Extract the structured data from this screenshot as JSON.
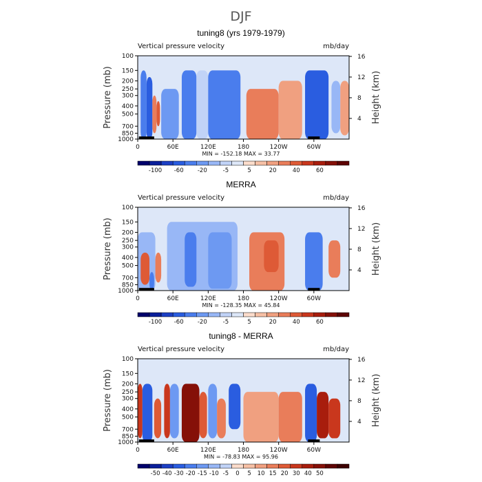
{
  "figure": {
    "season_title": "DJF"
  },
  "levels_common": [
    -120,
    -100,
    -80,
    -60,
    -40,
    -20,
    -10,
    -5,
    -2.5,
    2.5,
    5,
    10,
    20,
    30,
    40,
    50,
    60,
    70
  ],
  "levels_diff": [
    -60,
    -50,
    -40,
    -30,
    -20,
    -15,
    -10,
    -5,
    0,
    5,
    10,
    15,
    20,
    30,
    40,
    50,
    60
  ],
  "colors_common": [
    "#00006b",
    "#0a1f9a",
    "#1c3fc4",
    "#2a5de0",
    "#4a7ded",
    "#6d99f2",
    "#98b7f6",
    "#c1d3f7",
    "#dde7f8",
    "#fbdccb",
    "#f6c0a5",
    "#f0a080",
    "#e97d5a",
    "#de5a36",
    "#c9371d",
    "#a81d0d",
    "#851008",
    "#5e0404"
  ],
  "colors_diff": [
    "#00006b",
    "#0a1f9a",
    "#1c3fc4",
    "#2a5de0",
    "#4a7ded",
    "#6d99f2",
    "#98b7f6",
    "#c1d3f7",
    "#fbdccb",
    "#f6c0a5",
    "#f0a080",
    "#e97d5a",
    "#de5a36",
    "#c9371d",
    "#a81d0d",
    "#851008",
    "#5e0404",
    "#3d0000"
  ],
  "panels": [
    {
      "title": "tuning8 (yrs 1979-1979)",
      "left_label": "Vertical pressure velocity",
      "right_label": "mb/day",
      "ylabel": "Pressure (mb)",
      "ylabel_right": "Height (km)",
      "min_max": "MIN = -152.18   MAX =  33.77",
      "cbar_labels": [
        "-100",
        "-60",
        "-20",
        "-5",
        "5",
        "20",
        "40",
        "60"
      ],
      "palette": "common"
    },
    {
      "title": "MERRA",
      "left_label": "Vertical pressure velocity",
      "right_label": "mb/day",
      "ylabel": "Pressure (mb)",
      "ylabel_right": "Height (km)",
      "min_max": "MIN = -128.35   MAX =  45.84",
      "cbar_labels": [
        "-100",
        "-60",
        "-20",
        "-5",
        "5",
        "20",
        "40",
        "60"
      ],
      "palette": "common"
    },
    {
      "title": "tuning8 - MERRA",
      "left_label": "Vertical pressure velocity",
      "right_label": "mb/day",
      "ylabel": "Pressure (mb)",
      "ylabel_right": "Height (km)",
      "min_max": "MIN = -78.83   MAX =  95.96",
      "cbar_labels": [
        "-50",
        "-40",
        "-30",
        "-20",
        "-15",
        "-10",
        "-5",
        "0",
        "5",
        "10",
        "15",
        "20",
        "30",
        "40",
        "50"
      ],
      "palette": "diff"
    }
  ],
  "axes": {
    "x_ticks": [
      "0",
      "60E",
      "120E",
      "180",
      "120W",
      "60W"
    ],
    "x_tick_lon": [
      0,
      60,
      120,
      180,
      240,
      300
    ],
    "x_range": [
      0,
      360
    ],
    "y_ticks": [
      "100",
      "150",
      "200",
      "250",
      "300",
      "400",
      "500",
      "700",
      "850",
      "1000"
    ],
    "y_tick_p": [
      100,
      150,
      200,
      250,
      300,
      400,
      500,
      700,
      850,
      1000
    ],
    "y_range": [
      100,
      1000
    ],
    "y_scale": "log",
    "height_ticks": [
      "4",
      "8",
      "12",
      "16"
    ],
    "height_km": [
      4,
      8,
      12,
      16
    ]
  },
  "chart_data": [
    {
      "type": "heatmap",
      "title": "tuning8 (yrs 1979-1979)",
      "xlabel": "",
      "ylabel": "Pressure (mb)",
      "xlim": [
        0,
        360
      ],
      "ylim": [
        1000,
        100
      ],
      "units": "mb/day",
      "x": [
        0,
        30,
        45,
        60,
        75,
        90,
        105,
        120,
        135,
        150,
        165,
        180,
        195,
        210,
        225,
        240,
        255,
        270,
        285,
        300,
        315,
        330,
        345,
        360
      ],
      "y": [
        100,
        150,
        200,
        250,
        300,
        400,
        500,
        700,
        850,
        1000
      ],
      "regions": [
        {
          "lon": [
            5,
            15
          ],
          "p": [
            150,
            1000
          ],
          "value": -60
        },
        {
          "lon": [
            15,
            25
          ],
          "p": [
            180,
            1000
          ],
          "value": -80
        },
        {
          "lon": [
            25,
            32
          ],
          "p": [
            300,
            850
          ],
          "value": 10
        },
        {
          "lon": [
            32,
            38
          ],
          "p": [
            350,
            700
          ],
          "value": 20
        },
        {
          "lon": [
            40,
            70
          ],
          "p": [
            250,
            1000
          ],
          "value": -40
        },
        {
          "lon": [
            75,
            100
          ],
          "p": [
            150,
            1000
          ],
          "value": -60
        },
        {
          "lon": [
            100,
            120
          ],
          "p": [
            150,
            1000
          ],
          "value": -10
        },
        {
          "lon": [
            120,
            175
          ],
          "p": [
            150,
            1000
          ],
          "value": -60
        },
        {
          "lon": [
            185,
            240
          ],
          "p": [
            250,
            1000
          ],
          "value": 10
        },
        {
          "lon": [
            240,
            280
          ],
          "p": [
            200,
            1000
          ],
          "value": 5
        },
        {
          "lon": [
            285,
            325
          ],
          "p": [
            150,
            1000
          ],
          "value": -80
        },
        {
          "lon": [
            330,
            345
          ],
          "p": [
            200,
            850
          ],
          "value": -20
        },
        {
          "lon": [
            345,
            360
          ],
          "p": [
            200,
            900
          ],
          "value": 5
        }
      ],
      "min": -152.18,
      "max": 33.77
    },
    {
      "type": "heatmap",
      "title": "MERRA",
      "xlabel": "",
      "ylabel": "Pressure (mb)",
      "xlim": [
        0,
        360
      ],
      "ylim": [
        1000,
        100
      ],
      "units": "mb/day",
      "x": [
        0,
        30,
        45,
        60,
        75,
        90,
        105,
        120,
        135,
        150,
        165,
        180,
        195,
        210,
        225,
        240,
        255,
        270,
        285,
        300,
        315,
        330,
        345,
        360
      ],
      "y": [
        100,
        150,
        200,
        250,
        300,
        400,
        500,
        700,
        850,
        1000
      ],
      "regions": [
        {
          "lon": [
            0,
            30
          ],
          "p": [
            200,
            1000
          ],
          "value": -20
        },
        {
          "lon": [
            5,
            20
          ],
          "p": [
            350,
            850
          ],
          "value": 20
        },
        {
          "lon": [
            20,
            28
          ],
          "p": [
            600,
            1000
          ],
          "value": -60
        },
        {
          "lon": [
            30,
            40
          ],
          "p": [
            350,
            800
          ],
          "value": 10
        },
        {
          "lon": [
            50,
            170
          ],
          "p": [
            150,
            1000
          ],
          "value": -20
        },
        {
          "lon": [
            80,
            100
          ],
          "p": [
            200,
            900
          ],
          "value": -60
        },
        {
          "lon": [
            120,
            160
          ],
          "p": [
            200,
            950
          ],
          "value": -40
        },
        {
          "lon": [
            190,
            250
          ],
          "p": [
            200,
            1000
          ],
          "value": 10
        },
        {
          "lon": [
            215,
            240
          ],
          "p": [
            250,
            600
          ],
          "value": 20
        },
        {
          "lon": [
            285,
            315
          ],
          "p": [
            200,
            1000
          ],
          "value": -60
        },
        {
          "lon": [
            325,
            345
          ],
          "p": [
            250,
            700
          ],
          "value": 10
        }
      ],
      "min": -128.35,
      "max": 45.84
    },
    {
      "type": "heatmap",
      "title": "tuning8 - MERRA",
      "xlabel": "",
      "ylabel": "Pressure (mb)",
      "xlim": [
        0,
        360
      ],
      "ylim": [
        1000,
        100
      ],
      "units": "mb/day",
      "x": [
        0,
        30,
        45,
        60,
        75,
        90,
        105,
        120,
        135,
        150,
        165,
        180,
        195,
        210,
        225,
        240,
        255,
        270,
        285,
        300,
        315,
        330,
        345,
        360
      ],
      "y": [
        100,
        150,
        200,
        250,
        300,
        400,
        500,
        700,
        850,
        1000
      ],
      "regions": [
        {
          "lon": [
            0,
            8
          ],
          "p": [
            200,
            900
          ],
          "value": 20
        },
        {
          "lon": [
            8,
            25
          ],
          "p": [
            200,
            1000
          ],
          "value": -40
        },
        {
          "lon": [
            28,
            40
          ],
          "p": [
            300,
            900
          ],
          "value": 15
        },
        {
          "lon": [
            45,
            55
          ],
          "p": [
            200,
            900
          ],
          "value": 20
        },
        {
          "lon": [
            55,
            70
          ],
          "p": [
            200,
            900
          ],
          "value": -20
        },
        {
          "lon": [
            75,
            105
          ],
          "p": [
            200,
            1000
          ],
          "value": 40
        },
        {
          "lon": [
            105,
            118
          ],
          "p": [
            250,
            900
          ],
          "value": 15
        },
        {
          "lon": [
            120,
            135
          ],
          "p": [
            200,
            900
          ],
          "value": -20
        },
        {
          "lon": [
            135,
            150
          ],
          "p": [
            300,
            900
          ],
          "value": 10
        },
        {
          "lon": [
            155,
            175
          ],
          "p": [
            200,
            700
          ],
          "value": -40
        },
        {
          "lon": [
            180,
            240
          ],
          "p": [
            250,
            1000
          ],
          "value": 5
        },
        {
          "lon": [
            240,
            280
          ],
          "p": [
            250,
            1000
          ],
          "value": 10
        },
        {
          "lon": [
            285,
            305
          ],
          "p": [
            200,
            1000
          ],
          "value": -40
        },
        {
          "lon": [
            305,
            325
          ],
          "p": [
            250,
            900
          ],
          "value": 30
        },
        {
          "lon": [
            325,
            345
          ],
          "p": [
            300,
            900
          ],
          "value": 20
        }
      ],
      "min": -78.83,
      "max": 95.96
    }
  ]
}
